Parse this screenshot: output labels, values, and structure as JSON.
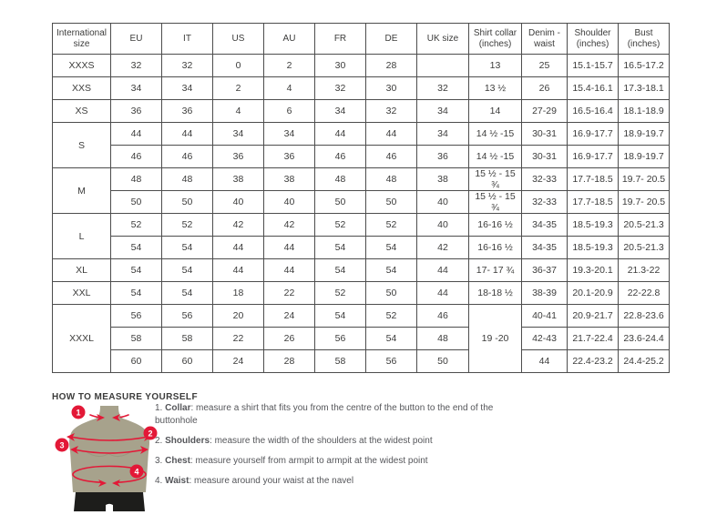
{
  "size_chart": {
    "columns": [
      "International size",
      "EU",
      "IT",
      "US",
      "AU",
      "FR",
      "DE",
      "UK size",
      "Shirt collar (inches)",
      "Denim - waist",
      "Shoulder (inches)",
      "Bust (inches)"
    ],
    "rows": [
      [
        {
          "v": "XXXS",
          "rs": 1
        },
        "32",
        "32",
        "0",
        "2",
        "30",
        "28",
        "",
        "13",
        "25",
        "15.1-15.7",
        "16.5-17.2"
      ],
      [
        {
          "v": "XXS",
          "rs": 1
        },
        "34",
        "34",
        "2",
        "4",
        "32",
        "30",
        "32",
        "13 ½",
        "26",
        "15.4-16.1",
        "17.3-18.1"
      ],
      [
        {
          "v": "XS",
          "rs": 1
        },
        "36",
        "36",
        "4",
        "6",
        "34",
        "32",
        "34",
        "14",
        "27-29",
        "16.5-16.4",
        "18.1-18.9"
      ],
      [
        {
          "v": "S",
          "rs": 2
        },
        "44",
        "44",
        "34",
        "34",
        "44",
        "44",
        "34",
        "14 ½ -15",
        "30-31",
        "16.9-17.7",
        "18.9-19.7"
      ],
      [
        null,
        "46",
        "46",
        "36",
        "36",
        "46",
        "46",
        "36",
        "14 ½ -15",
        "30-31",
        "16.9-17.7",
        "18.9-19.7"
      ],
      [
        {
          "v": "M",
          "rs": 2
        },
        "48",
        "48",
        "38",
        "38",
        "48",
        "48",
        "38",
        "15 ½ - 15 ¾",
        "32-33",
        "17.7-18.5",
        "19.7- 20.5"
      ],
      [
        null,
        "50",
        "50",
        "40",
        "40",
        "50",
        "50",
        "40",
        "15 ½ - 15 ¾",
        "32-33",
        "17.7-18.5",
        "19.7- 20.5"
      ],
      [
        {
          "v": "L",
          "rs": 2
        },
        "52",
        "52",
        "42",
        "42",
        "52",
        "52",
        "40",
        "16-16 ½",
        "34-35",
        "18.5-19.3",
        "20.5-21.3"
      ],
      [
        null,
        "54",
        "54",
        "44",
        "44",
        "54",
        "54",
        "42",
        "16-16 ½",
        "34-35",
        "18.5-19.3",
        "20.5-21.3"
      ],
      [
        {
          "v": "XL",
          "rs": 1
        },
        "54",
        "54",
        "44",
        "44",
        "54",
        "54",
        "44",
        "17- 17 ¾",
        "36-37",
        "19.3-20.1",
        "21.3-22"
      ],
      [
        {
          "v": "XXL",
          "rs": 1
        },
        "54",
        "54",
        "18",
        "22",
        "52",
        "50",
        "44",
        "18-18 ½",
        "38-39",
        "20.1-20.9",
        "22-22.8"
      ],
      [
        {
          "v": "XXXL",
          "rs": 3
        },
        "56",
        "56",
        "20",
        "24",
        "54",
        "52",
        "46",
        {
          "v": "19 -20",
          "rs": 3
        },
        "40-41",
        "20.9-21.7",
        "22.8-23.6"
      ],
      [
        null,
        "58",
        "58",
        "22",
        "26",
        "56",
        "54",
        "48",
        null,
        "42-43",
        "21.7-22.4",
        "23.6-24.4"
      ],
      [
        null,
        "60",
        "60",
        "24",
        "28",
        "58",
        "56",
        "50",
        null,
        "44",
        "22.4-23.2",
        "24.4-25.2"
      ]
    ]
  },
  "measure_guide": {
    "heading": "HOW TO MEASURE YOURSELF",
    "items": [
      {
        "num": "1.",
        "label": "Collar",
        "text": ": measure a shirt that fits you from the centre of the button to the end of the buttonhole"
      },
      {
        "num": "2.",
        "label": "Shoulders",
        "text": ": measure the width of the shoulders at the widest point"
      },
      {
        "num": "3.",
        "label": "Chest",
        "text": ": measure yourself from armpit to armpit at the widest point"
      },
      {
        "num": "4.",
        "label": "Waist",
        "text": ": measure around your waist at the navel"
      }
    ],
    "figure_markers": [
      "1",
      "2",
      "3",
      "4"
    ]
  },
  "colors": {
    "accent_red": "#e31837",
    "mannequin_body": "#a7a28c",
    "mannequin_shorts": "#1d1d1b",
    "table_border": "#4d4d4d",
    "text_dark": "#3c3c3b",
    "text_gray": "#55565a"
  }
}
